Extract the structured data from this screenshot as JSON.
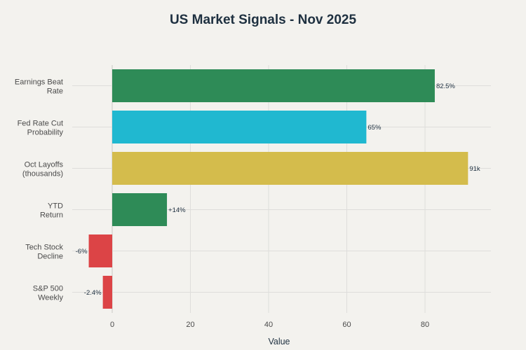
{
  "chart_data": {
    "type": "bar",
    "orientation": "horizontal",
    "title": "US Market Signals - Nov 2025",
    "xlabel": "Value",
    "ylabel": "",
    "xlim": [
      -6.5,
      96
    ],
    "xticks": [
      0,
      20,
      40,
      60,
      80
    ],
    "grid": true,
    "categories": [
      [
        "Earnings Beat",
        "Rate"
      ],
      [
        "Fed Rate Cut",
        "Probability"
      ],
      [
        "Oct Layoffs",
        "(thousands)"
      ],
      [
        "YTD",
        "Return"
      ],
      [
        "Tech Stock",
        "Decline"
      ],
      [
        "S&P 500",
        "Weekly"
      ]
    ],
    "values": [
      82.5,
      65,
      91,
      14,
      -6,
      -2.4
    ],
    "data_labels": [
      "82.5%",
      "65%",
      "91k",
      "+14%",
      "-6%",
      "-2.4%"
    ],
    "colors": [
      "#2e8b57",
      "#20b8d0",
      "#d4bc4c",
      "#2e8b57",
      "#dc4446",
      "#dc4446"
    ]
  }
}
